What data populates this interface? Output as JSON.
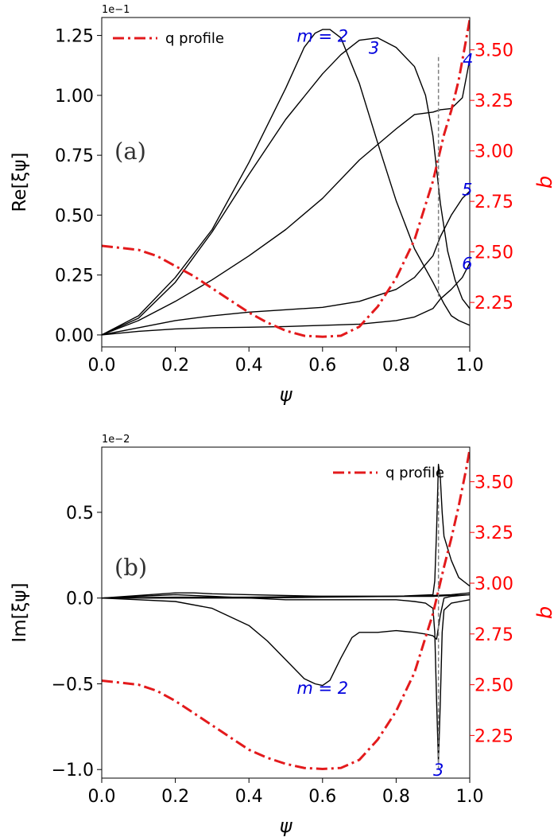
{
  "chart_data": [
    {
      "type": "line",
      "panel_label": "(a)",
      "exponent_label": "1e−1",
      "xlabel": "ψ",
      "ylabel": "Re[ξψ]",
      "ylabel_right": "q",
      "xlim": [
        0.0,
        1.0
      ],
      "ylim": [
        -0.5,
        13.25
      ],
      "q_lim": [
        2.03,
        3.66
      ],
      "x_ticks": [
        0.0,
        0.2,
        0.4,
        0.6,
        0.8,
        1.0
      ],
      "x_tick_labels": [
        "0.0",
        "0.2",
        "0.4",
        "0.6",
        "0.8",
        "1.0"
      ],
      "y_ticks": [
        0,
        2.5,
        5,
        7.5,
        10,
        12.5
      ],
      "y_tick_labels": [
        "0.00",
        "0.25",
        "0.50",
        "0.75",
        "1.00",
        "1.25"
      ],
      "q_ticks": [
        2.25,
        2.5,
        2.75,
        3.0,
        3.25,
        3.5
      ],
      "q_tick_labels": [
        "2.25",
        "2.50",
        "2.75",
        "3.00",
        "3.25",
        "3.50"
      ],
      "legend": {
        "label": "q profile",
        "location": "upper left"
      },
      "vline": {
        "x": 0.915,
        "y_from": 1.6,
        "y_to": 11.7
      },
      "mode_labels": [
        {
          "text": "m = 2",
          "x": 0.6,
          "y": 12.5
        },
        {
          "text": "3",
          "x": 0.74,
          "y": 12.0
        },
        {
          "text": "4",
          "x": 0.995,
          "y": 11.5
        },
        {
          "text": "5",
          "x": 0.993,
          "y": 6.1
        },
        {
          "text": "6",
          "x": 0.993,
          "y": 3.0
        }
      ],
      "q_profile": {
        "x": [
          0,
          0.05,
          0.1,
          0.15,
          0.2,
          0.25,
          0.3,
          0.35,
          0.4,
          0.45,
          0.5,
          0.55,
          0.6,
          0.65,
          0.7,
          0.75,
          0.8,
          0.85,
          0.9,
          0.93,
          0.95,
          0.97,
          0.99,
          1.0
        ],
        "y": [
          2.53,
          2.52,
          2.51,
          2.48,
          2.43,
          2.38,
          2.32,
          2.26,
          2.2,
          2.15,
          2.11,
          2.085,
          2.08,
          2.085,
          2.13,
          2.23,
          2.37,
          2.56,
          2.85,
          3.08,
          3.2,
          3.35,
          3.55,
          3.65
        ]
      },
      "series": [
        {
          "name": "m=2",
          "x": [
            0,
            0.1,
            0.2,
            0.3,
            0.4,
            0.5,
            0.55,
            0.58,
            0.6,
            0.62,
            0.65,
            0.7,
            0.75,
            0.8,
            0.85,
            0.9,
            0.93,
            0.95,
            0.97,
            1.0
          ],
          "y": [
            0,
            0.8,
            2.4,
            4.4,
            7.2,
            10.3,
            12.0,
            12.6,
            12.75,
            12.75,
            12.4,
            10.5,
            8.0,
            5.6,
            3.6,
            2.2,
            1.3,
            0.8,
            0.6,
            0.4
          ]
        },
        {
          "name": "m=3",
          "x": [
            0,
            0.1,
            0.2,
            0.3,
            0.4,
            0.5,
            0.6,
            0.65,
            0.7,
            0.75,
            0.8,
            0.85,
            0.88,
            0.9,
            0.92,
            0.94,
            0.96,
            0.98,
            1.0
          ],
          "y": [
            0,
            0.7,
            2.2,
            4.3,
            6.7,
            9.0,
            10.9,
            11.7,
            12.3,
            12.4,
            12.0,
            11.2,
            10.0,
            8.3,
            5.5,
            3.5,
            2.3,
            1.5,
            1.1
          ]
        },
        {
          "name": "m=4",
          "x": [
            0,
            0.1,
            0.2,
            0.3,
            0.4,
            0.5,
            0.6,
            0.7,
            0.8,
            0.85,
            0.9,
            0.92,
            0.95,
            0.98,
            1.0
          ],
          "y": [
            0,
            0.6,
            1.4,
            2.3,
            3.3,
            4.4,
            5.7,
            7.3,
            8.6,
            9.2,
            9.3,
            9.4,
            9.45,
            9.9,
            11.5
          ]
        },
        {
          "name": "m=5",
          "x": [
            0,
            0.1,
            0.2,
            0.3,
            0.4,
            0.5,
            0.6,
            0.7,
            0.8,
            0.85,
            0.9,
            0.92,
            0.95,
            0.98,
            1.0
          ],
          "y": [
            0,
            0.3,
            0.6,
            0.8,
            0.95,
            1.05,
            1.15,
            1.4,
            1.9,
            2.4,
            3.3,
            4.1,
            5.0,
            5.7,
            6.0
          ]
        },
        {
          "name": "m=6",
          "x": [
            0,
            0.1,
            0.2,
            0.3,
            0.4,
            0.5,
            0.6,
            0.7,
            0.8,
            0.85,
            0.9,
            0.92,
            0.95,
            0.98,
            1.0
          ],
          "y": [
            0,
            0.15,
            0.25,
            0.3,
            0.32,
            0.35,
            0.4,
            0.45,
            0.6,
            0.75,
            1.1,
            1.5,
            1.9,
            2.4,
            3.0
          ]
        }
      ]
    },
    {
      "type": "line",
      "panel_label": "(b)",
      "exponent_label": "1e−2",
      "xlabel": "ψ",
      "ylabel": "Im[ξψ]",
      "ylabel_right": "q",
      "xlim": [
        0.0,
        1.0
      ],
      "ylim": [
        -1.05,
        0.88
      ],
      "q_lim": [
        2.04,
        3.67
      ],
      "x_ticks": [
        0.0,
        0.2,
        0.4,
        0.6,
        0.8,
        1.0
      ],
      "x_tick_labels": [
        "0.0",
        "0.2",
        "0.4",
        "0.6",
        "0.8",
        "1.0"
      ],
      "y_ticks": [
        -1.0,
        -0.5,
        0.0,
        0.5
      ],
      "y_tick_labels": [
        "−1.0",
        "−0.5",
        "0.0",
        "0.5"
      ],
      "q_ticks": [
        2.25,
        2.5,
        2.75,
        3.0,
        3.25,
        3.5
      ],
      "q_tick_labels": [
        "2.25",
        "2.50",
        "2.75",
        "3.00",
        "3.25",
        "3.50"
      ],
      "legend": {
        "label": "q profile",
        "location": "upper right"
      },
      "vline": {
        "x": 0.915,
        "y_from": -1.0,
        "y_to": 0.66
      },
      "mode_labels": [
        {
          "text": "m = 2",
          "x": 0.6,
          "y": -0.52
        },
        {
          "text": "3",
          "x": 0.915,
          "y": -1.0
        }
      ],
      "q_profile": {
        "x": [
          0,
          0.05,
          0.1,
          0.15,
          0.2,
          0.25,
          0.3,
          0.35,
          0.4,
          0.45,
          0.5,
          0.55,
          0.6,
          0.65,
          0.7,
          0.75,
          0.8,
          0.85,
          0.9,
          0.93,
          0.95,
          0.97,
          0.99,
          1.0
        ],
        "y": [
          2.52,
          2.51,
          2.5,
          2.47,
          2.42,
          2.36,
          2.3,
          2.24,
          2.18,
          2.14,
          2.11,
          2.09,
          2.085,
          2.09,
          2.13,
          2.23,
          2.37,
          2.56,
          2.85,
          3.08,
          3.22,
          3.38,
          3.56,
          3.66
        ]
      },
      "series": [
        {
          "name": "m=2",
          "x": [
            0,
            0.1,
            0.2,
            0.3,
            0.4,
            0.45,
            0.5,
            0.55,
            0.58,
            0.6,
            0.62,
            0.65,
            0.68,
            0.7,
            0.75,
            0.8,
            0.85,
            0.88,
            0.9,
            0.91,
            0.92,
            0.93,
            0.95,
            1.0
          ],
          "y": [
            0,
            -0.01,
            -0.02,
            -0.06,
            -0.16,
            -0.25,
            -0.36,
            -0.47,
            -0.5,
            -0.51,
            -0.48,
            -0.35,
            -0.23,
            -0.2,
            -0.2,
            -0.19,
            -0.2,
            -0.21,
            -0.22,
            -0.24,
            -0.1,
            0.0,
            0.01,
            0.02
          ]
        },
        {
          "name": "m=3",
          "x": [
            0,
            0.1,
            0.2,
            0.3,
            0.4,
            0.5,
            0.6,
            0.7,
            0.8,
            0.85,
            0.88,
            0.9,
            0.905,
            0.91,
            0.915,
            0.92,
            0.925,
            0.93,
            0.95,
            1.0
          ],
          "y": [
            0,
            0.01,
            0.02,
            0.01,
            0.0,
            -0.01,
            -0.01,
            -0.01,
            -0.01,
            -0.02,
            -0.03,
            -0.06,
            -0.2,
            -0.6,
            -0.96,
            -0.6,
            -0.2,
            -0.07,
            -0.03,
            -0.01
          ]
        },
        {
          "name": "m=4",
          "x": [
            0,
            0.1,
            0.2,
            0.25,
            0.3,
            0.4,
            0.5,
            0.6,
            0.7,
            0.8,
            0.9,
            0.905,
            0.91,
            0.915,
            0.92,
            0.925,
            0.93,
            0.95,
            0.97,
            1.0
          ],
          "y": [
            0,
            0.015,
            0.03,
            0.03,
            0.025,
            0.02,
            0.015,
            0.01,
            0.01,
            0.01,
            0.02,
            0.1,
            0.4,
            0.78,
            0.7,
            0.5,
            0.36,
            0.22,
            0.12,
            0.07
          ]
        },
        {
          "name": "m=5",
          "x": [
            0,
            0.2,
            0.4,
            0.6,
            0.8,
            0.9,
            0.95,
            1.0
          ],
          "y": [
            0,
            0.005,
            0.005,
            0.01,
            0.01,
            0.015,
            0.02,
            0.03
          ]
        },
        {
          "name": "m=6",
          "x": [
            0,
            0.2,
            0.4,
            0.6,
            0.8,
            0.9,
            0.95,
            1.0
          ],
          "y": [
            0,
            0.0,
            0.0,
            0.005,
            0.01,
            0.01,
            0.015,
            0.02
          ]
        }
      ]
    }
  ],
  "colors": {
    "curve": "#000000",
    "q_profile": "#e31a1c",
    "q_axis": "#ff0000",
    "mode_label": "#0000dd",
    "vline": "#808080",
    "axis": "#000000"
  }
}
